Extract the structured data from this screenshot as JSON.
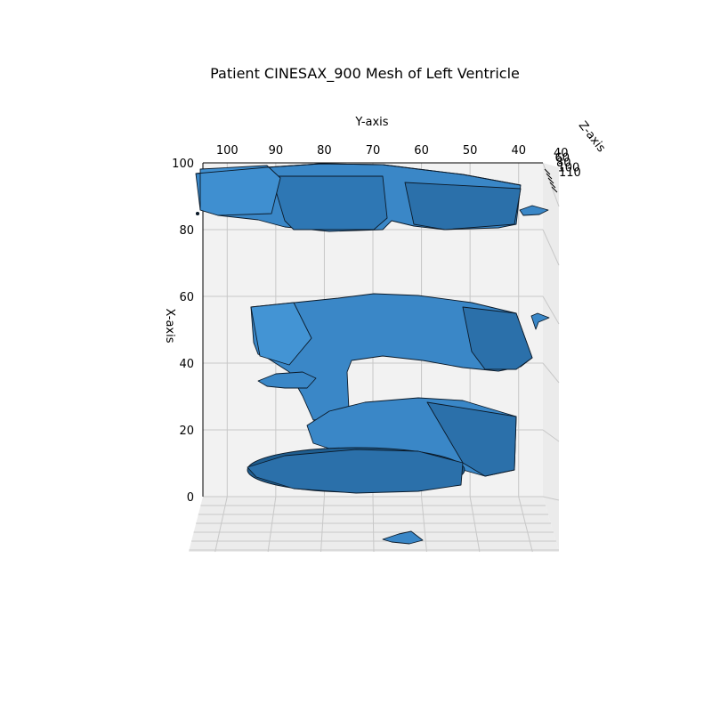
{
  "chart_data": {
    "type": "mesh3d",
    "title": "Patient CINESAX_900 Mesh of Left Ventricle",
    "xlabel": "X-axis",
    "ylabel": "Y-axis",
    "zlabel": "Z-axis",
    "x_ticks": [
      "0",
      "20",
      "40",
      "60",
      "80",
      "100"
    ],
    "y_ticks": [
      "100",
      "90",
      "80",
      "70",
      "60",
      "50",
      "40"
    ],
    "z_ticks": [
      "40",
      "60",
      "80",
      "100",
      "110"
    ],
    "xlim": [
      0,
      100
    ],
    "ylim": [
      35,
      105
    ],
    "grid": true,
    "colors": {
      "face": "#3a87c7",
      "face_dark": "#1f5d8f",
      "edge": "#0b1a29",
      "pane": "#f2f2f2",
      "gridline": "#c8c8c8"
    },
    "mesh_parts": [
      {
        "name": "upper-slab",
        "x_range": [
          80,
          100
        ],
        "y_range": [
          40,
          105
        ]
      },
      {
        "name": "middle-slab",
        "x_range": [
          40,
          60
        ],
        "y_range": [
          40,
          95
        ]
      },
      {
        "name": "lower-slab",
        "x_range": [
          7,
          30
        ],
        "y_range": [
          40,
          90
        ]
      },
      {
        "name": "base-disc",
        "x_range": [
          0,
          13
        ],
        "y_range": [
          50,
          95
        ]
      },
      {
        "name": "floor-fragment",
        "x_range": [
          -14,
          -12
        ],
        "y_range": [
          62,
          70
        ]
      },
      {
        "name": "right-fragment-upper",
        "x_range": [
          84,
          86
        ],
        "y_range": [
          36,
          40
        ]
      },
      {
        "name": "right-fragment-middle",
        "x_range": [
          50,
          54
        ],
        "y_range": [
          35,
          38
        ]
      }
    ]
  }
}
